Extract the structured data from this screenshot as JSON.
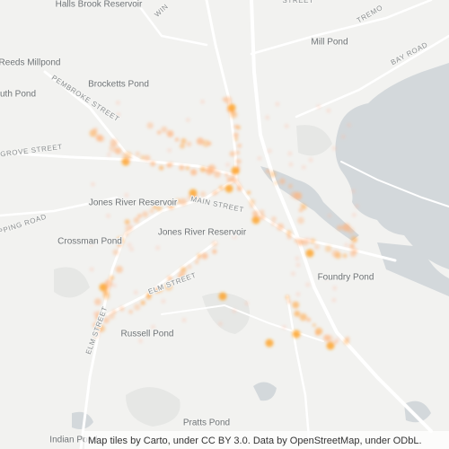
{
  "labels": [
    "Halls Brook Reservoir",
    "WIN",
    "STREET",
    "TREMO",
    "Mill Pond",
    "BAY ROAD",
    "Reeds Millpond",
    "PEMBROKE STREET",
    "Brocketts Pond",
    "uth Pond",
    "GROVE STREET",
    "Jones River Reservoir",
    "MAIN STREET",
    "PPING ROAD",
    "Crossman Pond",
    "Jones River Reservoir",
    "Foundry Pond",
    "ELM STREET",
    "ELM STREET",
    "Russell Pond",
    "Pratts Pond",
    "Indian Pond"
  ],
  "attribution": "Map tiles by Carto, under CC BY 3.0. Data by OpenStreetMap, under ODbL."
}
